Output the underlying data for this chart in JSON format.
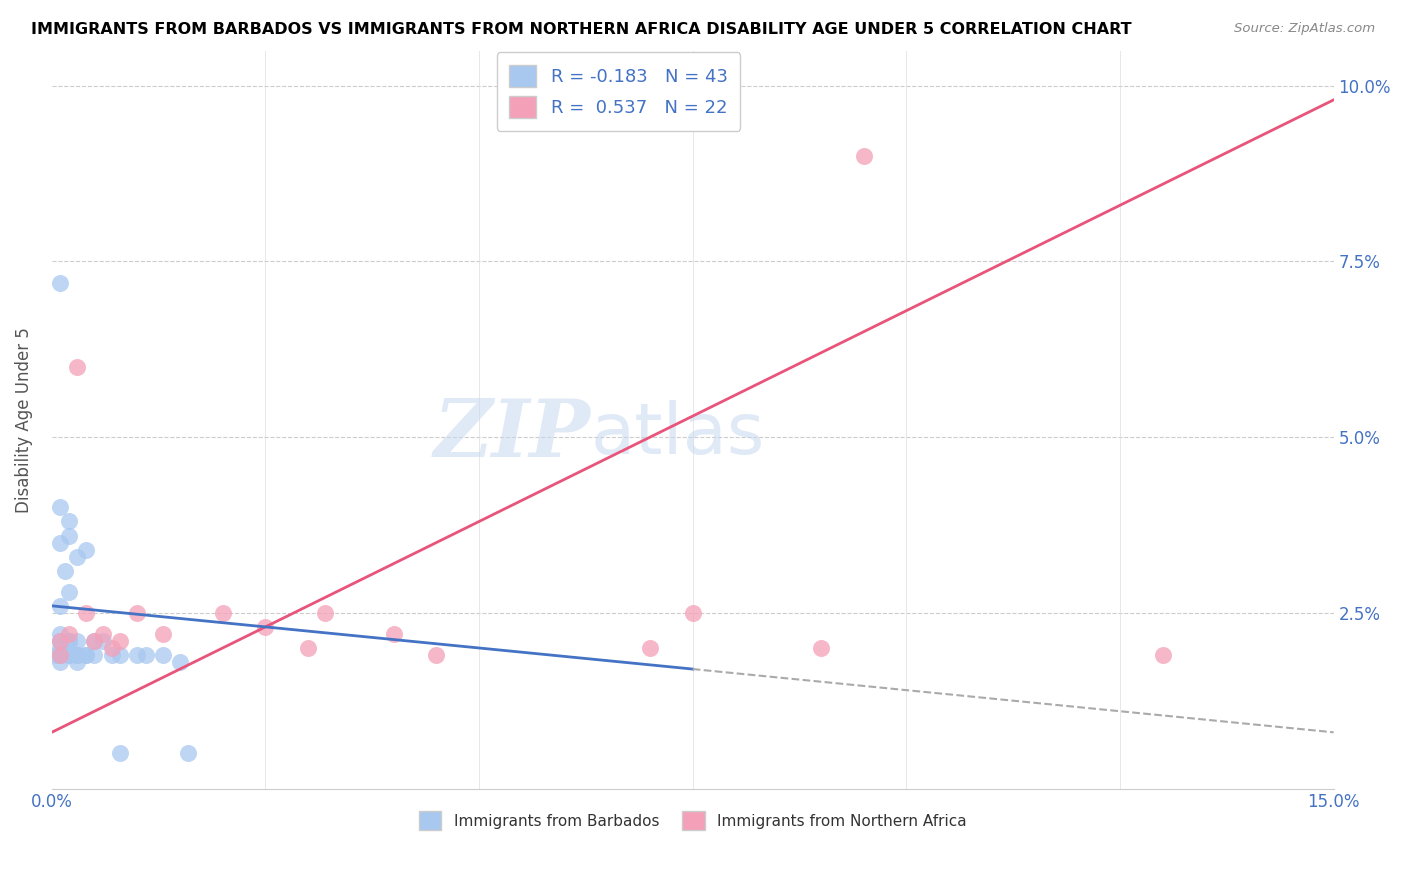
{
  "title": "IMMIGRANTS FROM BARBADOS VS IMMIGRANTS FROM NORTHERN AFRICA DISABILITY AGE UNDER 5 CORRELATION CHART",
  "source": "Source: ZipAtlas.com",
  "ylabel": "Disability Age Under 5",
  "xmin": 0.0,
  "xmax": 0.15,
  "ymin": 0.0,
  "ymax": 0.105,
  "xtick_positions": [
    0.0,
    0.025,
    0.05,
    0.075,
    0.1,
    0.125,
    0.15
  ],
  "xtick_labels": [
    "0.0%",
    "",
    "",
    "",
    "",
    "",
    "15.0%"
  ],
  "ytick_positions": [
    0.0,
    0.025,
    0.05,
    0.075,
    0.1
  ],
  "ytick_labels": [
    "",
    "2.5%",
    "5.0%",
    "7.5%",
    "10.0%"
  ],
  "barbados_R": -0.183,
  "barbados_N": 43,
  "northern_africa_R": 0.537,
  "northern_africa_N": 22,
  "barbados_color": "#a8c8f0",
  "northern_africa_color": "#f4a0b8",
  "barbados_line_color": "#4472c4",
  "northern_africa_line_color": "#e8547a",
  "watermark_zip": "ZIP",
  "watermark_atlas": "atlas",
  "barbados_x": [
    0.0005,
    0.001,
    0.001,
    0.001,
    0.001,
    0.001,
    0.001,
    0.001,
    0.001,
    0.001,
    0.0015,
    0.002,
    0.002,
    0.002,
    0.002,
    0.002,
    0.002,
    0.003,
    0.003,
    0.003,
    0.003,
    0.003,
    0.004,
    0.004,
    0.004,
    0.005,
    0.005,
    0.006,
    0.007,
    0.008,
    0.008,
    0.01,
    0.011,
    0.013,
    0.015,
    0.016,
    0.001,
    0.001,
    0.002,
    0.002,
    0.003,
    0.001,
    0.001
  ],
  "barbados_y": [
    0.019,
    0.019,
    0.02,
    0.021,
    0.021,
    0.022,
    0.018,
    0.019,
    0.019,
    0.026,
    0.031,
    0.019,
    0.019,
    0.021,
    0.021,
    0.036,
    0.038,
    0.019,
    0.019,
    0.018,
    0.021,
    0.033,
    0.019,
    0.019,
    0.034,
    0.021,
    0.019,
    0.021,
    0.019,
    0.019,
    0.005,
    0.019,
    0.019,
    0.019,
    0.018,
    0.005,
    0.04,
    0.035,
    0.028,
    0.021,
    0.019,
    0.072,
    0.019
  ],
  "northern_africa_x": [
    0.001,
    0.001,
    0.002,
    0.003,
    0.004,
    0.005,
    0.006,
    0.007,
    0.008,
    0.01,
    0.013,
    0.02,
    0.025,
    0.03,
    0.032,
    0.04,
    0.045,
    0.07,
    0.075,
    0.09,
    0.095,
    0.13
  ],
  "northern_africa_y": [
    0.019,
    0.021,
    0.022,
    0.06,
    0.025,
    0.021,
    0.022,
    0.02,
    0.021,
    0.025,
    0.022,
    0.025,
    0.023,
    0.02,
    0.025,
    0.022,
    0.019,
    0.02,
    0.025,
    0.02,
    0.09,
    0.019
  ],
  "na_line_x0": 0.0,
  "na_line_y0": 0.008,
  "na_line_x1": 0.15,
  "na_line_y1": 0.098,
  "b_line_x0": 0.0,
  "b_line_y0": 0.026,
  "b_line_x1": 0.15,
  "b_line_y1": 0.008
}
